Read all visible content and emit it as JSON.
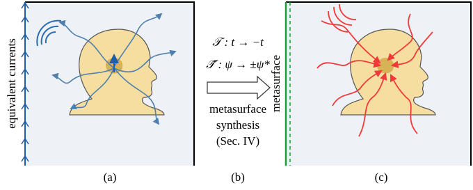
{
  "panels": {
    "a": {
      "side_label": "equivalent currents",
      "caption": "(a)"
    },
    "b": {
      "transform_time": "𝒯 : t → −t",
      "transform_field": "𝒯̃ : ψ → ±ψ*",
      "process": [
        "metasurface",
        "synthesis",
        "(Sec. IV)"
      ],
      "caption": "(b)"
    },
    "c": {
      "side_label": "metasurface",
      "caption": "(c)"
    }
  }
}
